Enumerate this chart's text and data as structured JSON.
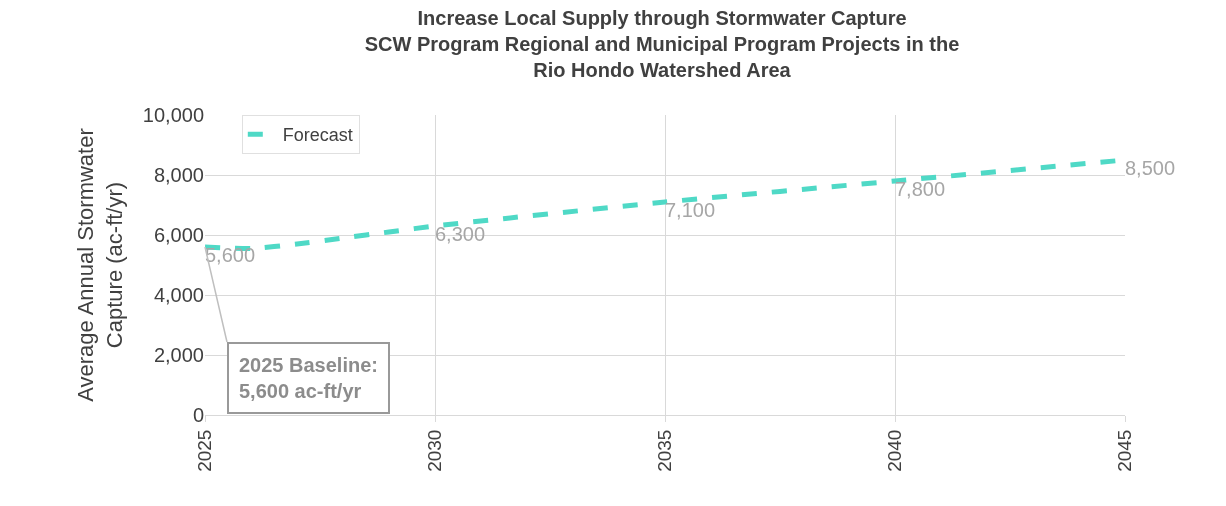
{
  "chart_data": {
    "type": "line",
    "title": "Increase Local Supply through Stormwater Capture\nSCW Program Regional and Municipal Program Projects in the\nRio Hondo Watershed Area",
    "ylabel": "Average Annual Stormwater\nCapture (ac-ft/yr)",
    "x": [
      2025,
      2026,
      2027,
      2028,
      2029,
      2030,
      2035,
      2040,
      2045
    ],
    "series": [
      {
        "name": "Forecast",
        "color": "#4fd9c6",
        "line_style": "dashed",
        "values": [
          5600,
          5550,
          5700,
          5900,
          6100,
          6300,
          7100,
          7800,
          8500
        ],
        "value_labels": [
          "5,600",
          null,
          null,
          null,
          null,
          "6,300",
          "7,100",
          "7,800",
          "8,500"
        ]
      }
    ],
    "xlim": [
      2025,
      2045
    ],
    "xticks": [
      2025,
      2030,
      2035,
      2040,
      2045
    ],
    "ylim": [
      0,
      10000
    ],
    "yticks": [
      0,
      {
        "value": 2000,
        "label": "2,000"
      },
      {
        "value": 4000,
        "label": "4,000"
      },
      {
        "value": 6000,
        "label": "6,000"
      },
      {
        "value": 8000,
        "label": "8,000"
      },
      {
        "value": 10000,
        "label": "10,000"
      }
    ],
    "grid": true,
    "legend": "top left",
    "marker": "none",
    "annotations": [
      {
        "text": "2025 Baseline:\n5,600 ac-ft/yr",
        "x": 2025,
        "y": 5600
      }
    ]
  }
}
